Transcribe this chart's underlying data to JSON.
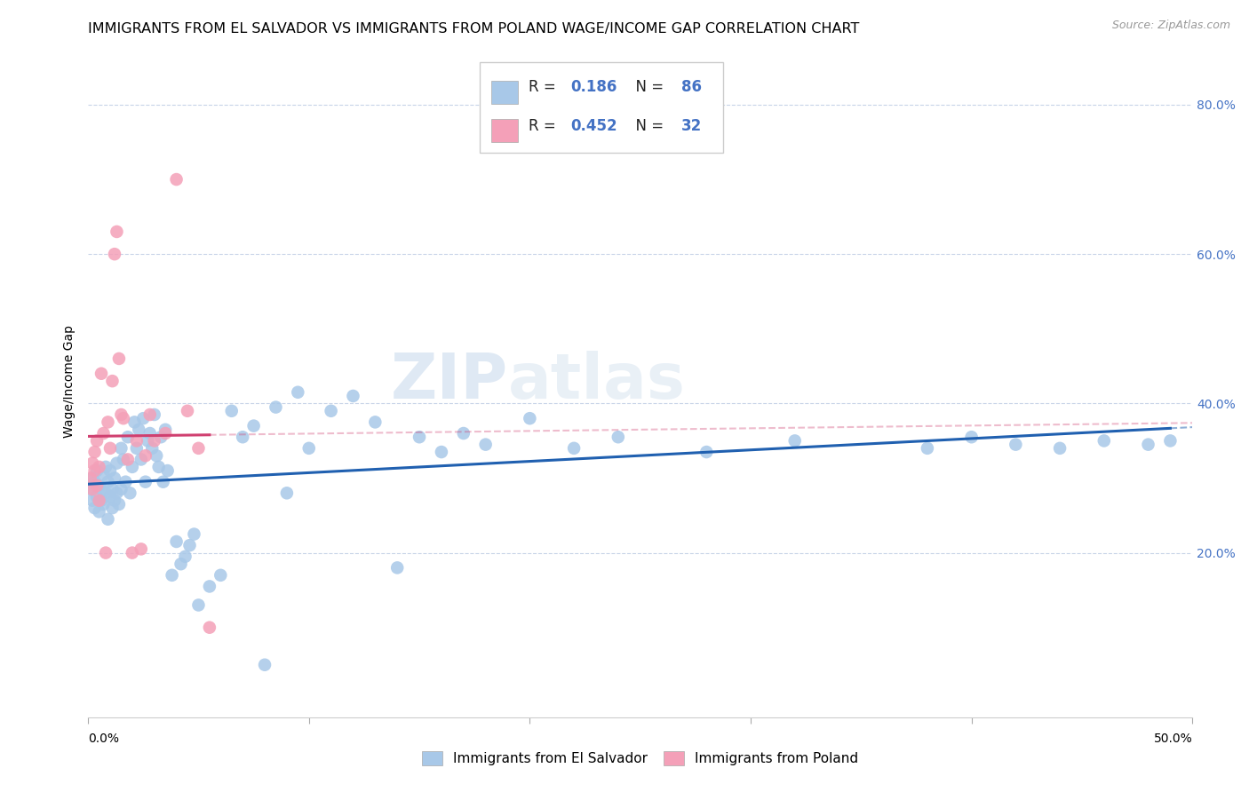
{
  "title": "IMMIGRANTS FROM EL SALVADOR VS IMMIGRANTS FROM POLAND WAGE/INCOME GAP CORRELATION CHART",
  "source": "Source: ZipAtlas.com",
  "ylabel": "Wage/Income Gap",
  "xlim": [
    0.0,
    0.5
  ],
  "ylim": [
    -0.02,
    0.88
  ],
  "ytick_vals": [
    0.2,
    0.4,
    0.6,
    0.8
  ],
  "ytick_labels": [
    "20.0%",
    "40.0%",
    "60.0%",
    "80.0%"
  ],
  "xtick_vals": [
    0.0,
    0.1,
    0.2,
    0.3,
    0.4,
    0.5
  ],
  "series1": {
    "label": "Immigrants from El Salvador",
    "R": 0.186,
    "N": 86,
    "color": "#a8c8e8",
    "line_color": "#2060b0",
    "x": [
      0.001,
      0.002,
      0.002,
      0.003,
      0.003,
      0.004,
      0.004,
      0.005,
      0.005,
      0.006,
      0.006,
      0.007,
      0.007,
      0.008,
      0.008,
      0.009,
      0.009,
      0.01,
      0.01,
      0.011,
      0.011,
      0.012,
      0.012,
      0.013,
      0.013,
      0.014,
      0.015,
      0.015,
      0.016,
      0.017,
      0.018,
      0.019,
      0.02,
      0.021,
      0.022,
      0.023,
      0.024,
      0.025,
      0.026,
      0.027,
      0.028,
      0.029,
      0.03,
      0.031,
      0.032,
      0.033,
      0.034,
      0.035,
      0.036,
      0.038,
      0.04,
      0.042,
      0.044,
      0.046,
      0.048,
      0.05,
      0.055,
      0.06,
      0.065,
      0.07,
      0.075,
      0.08,
      0.085,
      0.09,
      0.095,
      0.1,
      0.11,
      0.12,
      0.13,
      0.14,
      0.15,
      0.16,
      0.17,
      0.18,
      0.2,
      0.22,
      0.24,
      0.28,
      0.32,
      0.38,
      0.4,
      0.42,
      0.44,
      0.46,
      0.48,
      0.49
    ],
    "y": [
      0.285,
      0.27,
      0.3,
      0.26,
      0.295,
      0.275,
      0.31,
      0.255,
      0.29,
      0.285,
      0.27,
      0.305,
      0.265,
      0.28,
      0.315,
      0.245,
      0.295,
      0.275,
      0.31,
      0.26,
      0.285,
      0.3,
      0.27,
      0.32,
      0.28,
      0.265,
      0.34,
      0.285,
      0.325,
      0.295,
      0.355,
      0.28,
      0.315,
      0.375,
      0.34,
      0.365,
      0.325,
      0.38,
      0.295,
      0.35,
      0.36,
      0.34,
      0.385,
      0.33,
      0.315,
      0.355,
      0.295,
      0.365,
      0.31,
      0.17,
      0.215,
      0.185,
      0.195,
      0.21,
      0.225,
      0.13,
      0.155,
      0.17,
      0.39,
      0.355,
      0.37,
      0.05,
      0.395,
      0.28,
      0.415,
      0.34,
      0.39,
      0.41,
      0.375,
      0.18,
      0.355,
      0.335,
      0.36,
      0.345,
      0.38,
      0.34,
      0.355,
      0.335,
      0.35,
      0.34,
      0.355,
      0.345,
      0.34,
      0.35,
      0.345,
      0.35
    ]
  },
  "series2": {
    "label": "Immigrants from Poland",
    "R": 0.452,
    "N": 32,
    "color": "#f4a0b8",
    "line_color": "#d04070",
    "x": [
      0.001,
      0.002,
      0.002,
      0.003,
      0.003,
      0.004,
      0.004,
      0.005,
      0.005,
      0.006,
      0.007,
      0.008,
      0.009,
      0.01,
      0.011,
      0.012,
      0.013,
      0.014,
      0.015,
      0.016,
      0.018,
      0.02,
      0.022,
      0.024,
      0.026,
      0.028,
      0.03,
      0.035,
      0.04,
      0.045,
      0.05,
      0.055
    ],
    "y": [
      0.3,
      0.285,
      0.32,
      0.31,
      0.335,
      0.29,
      0.35,
      0.27,
      0.315,
      0.44,
      0.36,
      0.2,
      0.375,
      0.34,
      0.43,
      0.6,
      0.63,
      0.46,
      0.385,
      0.38,
      0.325,
      0.2,
      0.35,
      0.205,
      0.33,
      0.385,
      0.35,
      0.36,
      0.7,
      0.39,
      0.34,
      0.1
    ]
  },
  "watermark_zip": "ZIP",
  "watermark_atlas": "atlas",
  "title_fontsize": 11.5,
  "axis_label_fontsize": 10,
  "tick_fontsize": 10,
  "legend_fontsize": 12
}
